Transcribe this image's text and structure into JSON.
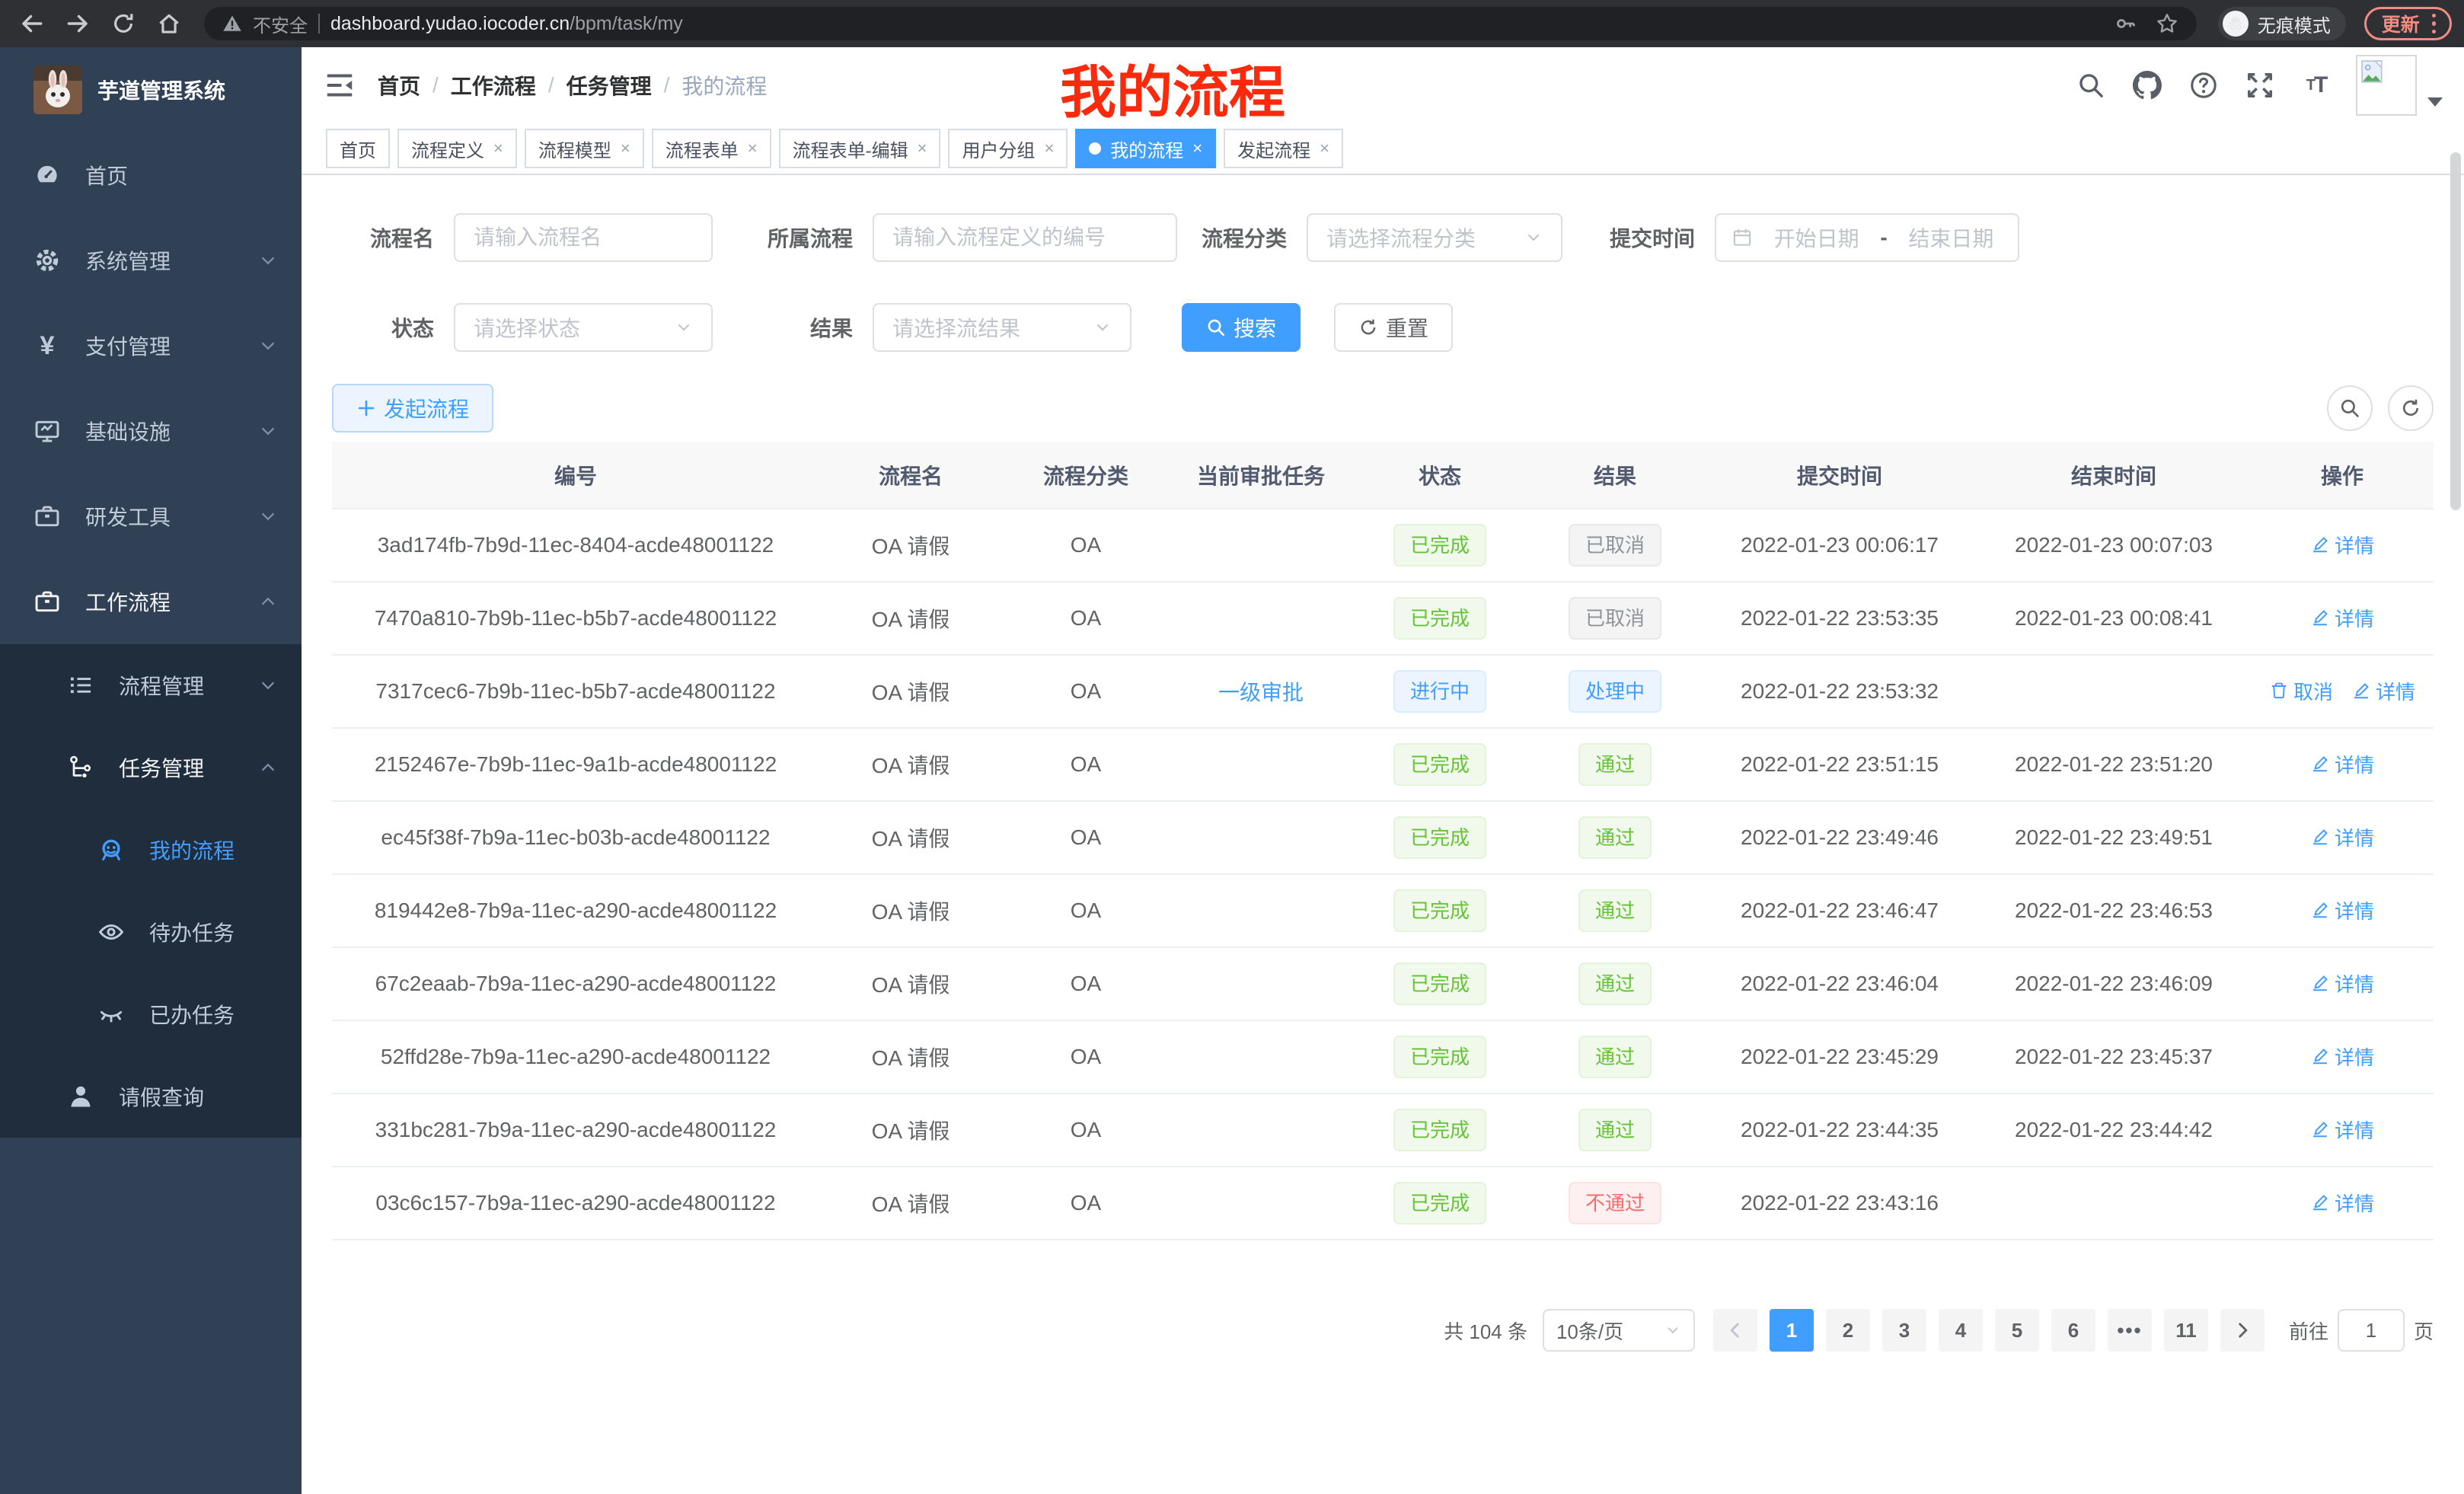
{
  "colors": {
    "accent": "#409eff",
    "success": "#67c23a",
    "danger": "#f56c6c",
    "info": "#909399",
    "annotation": "#fb2a0c",
    "sidebar_bg": "#304156",
    "submenu_bg": "#1f2d3d"
  },
  "browser": {
    "security_label": "不安全",
    "url_host": "dashboard.yudao.iocoder.cn",
    "url_path": "/bpm/task/my",
    "incognito_label": "无痕模式",
    "update_label": "更新"
  },
  "sidebar": {
    "title": "芋道管理系统",
    "menu": [
      {
        "label": "首页",
        "icon": "dashboard-icon",
        "level": 0,
        "arrow": "none",
        "active": false,
        "sub": false
      },
      {
        "label": "系统管理",
        "icon": "gear-icon",
        "level": 0,
        "arrow": "down",
        "active": false,
        "sub": false
      },
      {
        "label": "支付管理",
        "icon": "yen-icon",
        "level": 0,
        "arrow": "down",
        "active": false,
        "sub": false
      },
      {
        "label": "基础设施",
        "icon": "monitor-icon",
        "level": 0,
        "arrow": "down",
        "active": false,
        "sub": false
      },
      {
        "label": "研发工具",
        "icon": "briefcase-icon",
        "level": 0,
        "arrow": "down",
        "active": false,
        "sub": false
      },
      {
        "label": "工作流程",
        "icon": "briefcase-icon",
        "level": 0,
        "arrow": "up",
        "active": false,
        "sub": false,
        "open": true
      },
      {
        "label": "流程管理",
        "icon": "list-icon",
        "level": 1,
        "arrow": "down",
        "active": false,
        "sub": true
      },
      {
        "label": "任务管理",
        "icon": "tree-icon",
        "level": 1,
        "arrow": "up",
        "active": false,
        "sub": true,
        "open": true
      },
      {
        "label": "我的流程",
        "icon": "robot-icon",
        "level": 2,
        "arrow": "none",
        "active": true,
        "sub": true
      },
      {
        "label": "待办任务",
        "icon": "eye-icon",
        "level": 2,
        "arrow": "none",
        "active": false,
        "sub": true
      },
      {
        "label": "已办任务",
        "icon": "eye-closed-icon",
        "level": 2,
        "arrow": "none",
        "active": false,
        "sub": true
      },
      {
        "label": "请假查询",
        "icon": "user-icon",
        "level": 1,
        "arrow": "none",
        "active": false,
        "sub": true
      }
    ]
  },
  "header": {
    "breadcrumb": [
      "首页",
      "工作流程",
      "任务管理",
      "我的流程"
    ],
    "annotation": "我的流程"
  },
  "tabs": [
    {
      "label": "首页",
      "closable": false,
      "active": false
    },
    {
      "label": "流程定义",
      "closable": true,
      "active": false
    },
    {
      "label": "流程模型",
      "closable": true,
      "active": false
    },
    {
      "label": "流程表单",
      "closable": true,
      "active": false
    },
    {
      "label": "流程表单-编辑",
      "closable": true,
      "active": false
    },
    {
      "label": "用户分组",
      "closable": true,
      "active": false
    },
    {
      "label": "我的流程",
      "closable": true,
      "active": true
    },
    {
      "label": "发起流程",
      "closable": true,
      "active": false
    }
  ],
  "filters": {
    "name_label": "流程名",
    "name_placeholder": "请输入流程名",
    "definition_label": "所属流程",
    "definition_placeholder": "请输入流程定义的编号",
    "category_label": "流程分类",
    "category_placeholder": "请选择流程分类",
    "time_label": "提交时间",
    "time_start_placeholder": "开始日期",
    "time_separator": "-",
    "time_end_placeholder": "结束日期",
    "status_label": "状态",
    "status_placeholder": "请选择状态",
    "result_label": "结果",
    "result_placeholder": "请选择流结果",
    "search_button": "搜索",
    "reset_button": "重置"
  },
  "toolbar": {
    "create_button": "发起流程"
  },
  "table": {
    "columns": [
      "编号",
      "流程名",
      "流程分类",
      "当前审批任务",
      "状态",
      "结果",
      "提交时间",
      "结束时间",
      "操作"
    ],
    "rows": [
      {
        "id": "3ad174fb-7b9d-11ec-8404-acde48001122",
        "name": "OA 请假",
        "category": "OA",
        "task": "",
        "status": "已完成",
        "status_type": "success",
        "result": "已取消",
        "result_type": "info",
        "submit": "2022-01-23 00:06:17",
        "end": "2022-01-23 00:07:03",
        "actions": [
          {
            "label": "详情",
            "icon": "edit-icon"
          }
        ]
      },
      {
        "id": "7470a810-7b9b-11ec-b5b7-acde48001122",
        "name": "OA 请假",
        "category": "OA",
        "task": "",
        "status": "已完成",
        "status_type": "success",
        "result": "已取消",
        "result_type": "info",
        "submit": "2022-01-22 23:53:35",
        "end": "2022-01-23 00:08:41",
        "actions": [
          {
            "label": "详情",
            "icon": "edit-icon"
          }
        ]
      },
      {
        "id": "7317cec6-7b9b-11ec-b5b7-acde48001122",
        "name": "OA 请假",
        "category": "OA",
        "task": "一级审批",
        "status": "进行中",
        "status_type": "primary",
        "result": "处理中",
        "result_type": "primary",
        "submit": "2022-01-22 23:53:32",
        "end": "",
        "actions": [
          {
            "label": "取消",
            "icon": "delete-icon"
          },
          {
            "label": "详情",
            "icon": "edit-icon"
          }
        ]
      },
      {
        "id": "2152467e-7b9b-11ec-9a1b-acde48001122",
        "name": "OA 请假",
        "category": "OA",
        "task": "",
        "status": "已完成",
        "status_type": "success",
        "result": "通过",
        "result_type": "success",
        "submit": "2022-01-22 23:51:15",
        "end": "2022-01-22 23:51:20",
        "actions": [
          {
            "label": "详情",
            "icon": "edit-icon"
          }
        ]
      },
      {
        "id": "ec45f38f-7b9a-11ec-b03b-acde48001122",
        "name": "OA 请假",
        "category": "OA",
        "task": "",
        "status": "已完成",
        "status_type": "success",
        "result": "通过",
        "result_type": "success",
        "submit": "2022-01-22 23:49:46",
        "end": "2022-01-22 23:49:51",
        "actions": [
          {
            "label": "详情",
            "icon": "edit-icon"
          }
        ]
      },
      {
        "id": "819442e8-7b9a-11ec-a290-acde48001122",
        "name": "OA 请假",
        "category": "OA",
        "task": "",
        "status": "已完成",
        "status_type": "success",
        "result": "通过",
        "result_type": "success",
        "submit": "2022-01-22 23:46:47",
        "end": "2022-01-22 23:46:53",
        "actions": [
          {
            "label": "详情",
            "icon": "edit-icon"
          }
        ]
      },
      {
        "id": "67c2eaab-7b9a-11ec-a290-acde48001122",
        "name": "OA 请假",
        "category": "OA",
        "task": "",
        "status": "已完成",
        "status_type": "success",
        "result": "通过",
        "result_type": "success",
        "submit": "2022-01-22 23:46:04",
        "end": "2022-01-22 23:46:09",
        "actions": [
          {
            "label": "详情",
            "icon": "edit-icon"
          }
        ]
      },
      {
        "id": "52ffd28e-7b9a-11ec-a290-acde48001122",
        "name": "OA 请假",
        "category": "OA",
        "task": "",
        "status": "已完成",
        "status_type": "success",
        "result": "通过",
        "result_type": "success",
        "submit": "2022-01-22 23:45:29",
        "end": "2022-01-22 23:45:37",
        "actions": [
          {
            "label": "详情",
            "icon": "edit-icon"
          }
        ]
      },
      {
        "id": "331bc281-7b9a-11ec-a290-acde48001122",
        "name": "OA 请假",
        "category": "OA",
        "task": "",
        "status": "已完成",
        "status_type": "success",
        "result": "通过",
        "result_type": "success",
        "submit": "2022-01-22 23:44:35",
        "end": "2022-01-22 23:44:42",
        "actions": [
          {
            "label": "详情",
            "icon": "edit-icon"
          }
        ]
      },
      {
        "id": "03c6c157-7b9a-11ec-a290-acde48001122",
        "name": "OA 请假",
        "category": "OA",
        "task": "",
        "status": "已完成",
        "status_type": "success",
        "result": "不通过",
        "result_type": "danger",
        "submit": "2022-01-22 23:43:16",
        "end": "",
        "actions": [
          {
            "label": "详情",
            "icon": "edit-icon"
          }
        ]
      }
    ]
  },
  "pagination": {
    "total_text": "共 104 条",
    "page_size": "10条/页",
    "pages": [
      "1",
      "2",
      "3",
      "4",
      "5",
      "6",
      "...",
      "11"
    ],
    "active_page": "1",
    "goto_label": "前往",
    "goto_value": "1",
    "goto_suffix": "页"
  }
}
